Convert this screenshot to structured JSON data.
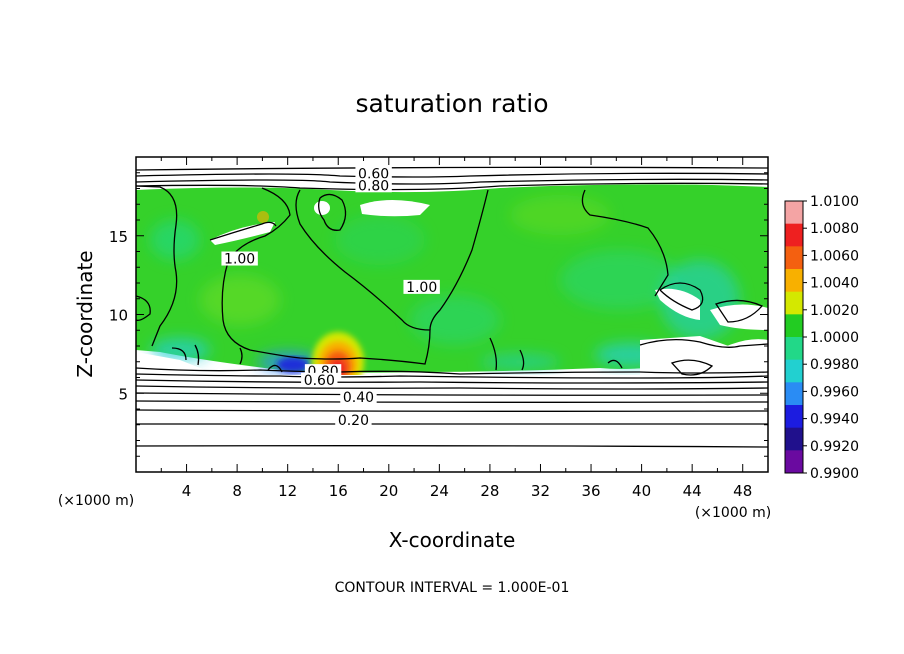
{
  "chart_data": {
    "type": "heatmap",
    "title": "saturation ratio",
    "xlabel": "X-coordinate",
    "ylabel": "Z-coordinate",
    "x_unit_label": "(×1000 m)",
    "y_unit_label": "(×1000 m)",
    "xlim": [
      0,
      50
    ],
    "ylim": [
      0,
      20
    ],
    "x_ticks": [
      4,
      8,
      12,
      16,
      20,
      24,
      28,
      32,
      36,
      40,
      44,
      48
    ],
    "y_ticks": [
      5,
      10,
      15
    ],
    "colorbar": {
      "min": 0.99,
      "max": 1.01,
      "ticks": [
        "1.0100",
        "1.0080",
        "1.0060",
        "1.0040",
        "1.0020",
        "1.0000",
        "0.9980",
        "0.9960",
        "0.9940",
        "0.9920",
        "0.9900"
      ],
      "colors": [
        "#f4a4a4",
        "#ee2020",
        "#f46010",
        "#f8b000",
        "#d4e800",
        "#22cc22",
        "#22d888",
        "#22d0d0",
        "#2a8cf4",
        "#1c1ce0",
        "#20108c",
        "#6a0aa0"
      ]
    },
    "contour_labels": [
      {
        "text": "0.60",
        "x": 18.8,
        "y": 18.7
      },
      {
        "text": "0.80",
        "x": 18.8,
        "y": 17.95
      },
      {
        "text": "1.00",
        "x": 8.2,
        "y": 13.3
      },
      {
        "text": "1.00",
        "x": 22.6,
        "y": 11.5
      },
      {
        "text": "0.80",
        "x": 14.8,
        "y": 6.15
      },
      {
        "text": "0.60",
        "x": 14.5,
        "y": 5.6
      },
      {
        "text": "0.40",
        "x": 17.6,
        "y": 4.5
      },
      {
        "text": "0.20",
        "x": 17.2,
        "y": 3.05
      }
    ],
    "footer": "CONTOUR INTERVAL = 1.000E-01"
  }
}
